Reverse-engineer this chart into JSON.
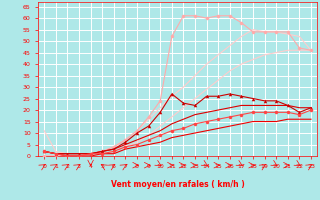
{
  "xlabel": "Vent moyen/en rafales ( km/h )",
  "bg_color": "#aee8e8",
  "grid_color": "#cceeee",
  "text_color": "#ff0000",
  "xlim": [
    -0.5,
    23.5
  ],
  "ylim": [
    0,
    67
  ],
  "yticks": [
    0,
    5,
    10,
    15,
    20,
    25,
    30,
    35,
    40,
    45,
    50,
    55,
    60,
    65
  ],
  "xticks": [
    0,
    1,
    2,
    3,
    4,
    5,
    6,
    7,
    8,
    9,
    10,
    11,
    12,
    13,
    14,
    15,
    16,
    17,
    18,
    19,
    20,
    21,
    22,
    23
  ],
  "line_pink_dot_x": [
    0,
    1,
    2,
    3,
    4,
    5,
    6,
    7,
    8,
    9,
    10,
    11,
    12,
    13,
    14,
    15,
    16,
    17,
    18,
    19,
    20,
    21,
    22,
    23
  ],
  "line_pink_dot_y": [
    0,
    0,
    0,
    0,
    1,
    2,
    4,
    7,
    11,
    17,
    24,
    52,
    61,
    61,
    60,
    61,
    61,
    58,
    54,
    54,
    54,
    54,
    47,
    46
  ],
  "line_pink_dot_color": "#ffaaaa",
  "line_pink_top_x": [
    0,
    1,
    2,
    3,
    4,
    5,
    6,
    7,
    8,
    9,
    10,
    11,
    12,
    13,
    14,
    15,
    16,
    17,
    18,
    19,
    20,
    21,
    22,
    23
  ],
  "line_pink_top_y": [
    11,
    2,
    1,
    1,
    1,
    2,
    4,
    7,
    11,
    16,
    21,
    26,
    30,
    35,
    40,
    44,
    48,
    52,
    55,
    54,
    54,
    53,
    52,
    46
  ],
  "line_pink_top_color": "#ffcccc",
  "line_pink_diag_x": [
    0,
    1,
    2,
    3,
    4,
    5,
    6,
    7,
    8,
    9,
    10,
    11,
    12,
    13,
    14,
    15,
    16,
    17,
    18,
    19,
    20,
    21,
    22,
    23
  ],
  "line_pink_diag_y": [
    0,
    0,
    0,
    0,
    1,
    1,
    2,
    4,
    6,
    9,
    13,
    17,
    21,
    25,
    29,
    33,
    37,
    40,
    42,
    44,
    45,
    46,
    46,
    46
  ],
  "line_pink_diag_color": "#ffcccc",
  "line_red_tri_x": [
    0,
    1,
    2,
    3,
    4,
    5,
    6,
    7,
    8,
    9,
    10,
    11,
    12,
    13,
    14,
    15,
    16,
    17,
    18,
    19,
    20,
    21,
    22,
    23
  ],
  "line_red_tri_y": [
    2,
    1,
    1,
    1,
    1,
    2,
    3,
    6,
    10,
    13,
    19,
    27,
    23,
    22,
    26,
    26,
    27,
    26,
    25,
    24,
    24,
    22,
    19,
    21
  ],
  "line_red_tri_color": "#cc0000",
  "line_red1_x": [
    0,
    1,
    2,
    3,
    4,
    5,
    6,
    7,
    8,
    9,
    10,
    11,
    12,
    13,
    14,
    15,
    16,
    17,
    18,
    19,
    20,
    21,
    22,
    23
  ],
  "line_red1_y": [
    2,
    1,
    1,
    1,
    1,
    2,
    3,
    5,
    7,
    9,
    11,
    14,
    16,
    18,
    19,
    20,
    21,
    22,
    22,
    22,
    22,
    22,
    21,
    21
  ],
  "line_red1_color": "#dd0000",
  "line_red_dot_x": [
    0,
    1,
    2,
    3,
    4,
    5,
    6,
    7,
    8,
    9,
    10,
    11,
    12,
    13,
    14,
    15,
    16,
    17,
    18,
    19,
    20,
    21,
    22,
    23
  ],
  "line_red_dot_y": [
    2,
    1,
    0,
    0,
    1,
    1,
    2,
    4,
    5,
    7,
    9,
    11,
    12,
    14,
    15,
    16,
    17,
    18,
    19,
    19,
    19,
    19,
    18,
    20
  ],
  "line_red_dot_color": "#ff4444",
  "line_red2_x": [
    0,
    1,
    2,
    3,
    4,
    5,
    6,
    7,
    8,
    9,
    10,
    11,
    12,
    13,
    14,
    15,
    16,
    17,
    18,
    19,
    20,
    21,
    22,
    23
  ],
  "line_red2_y": [
    2,
    1,
    0,
    0,
    0,
    1,
    1,
    3,
    4,
    5,
    6,
    8,
    9,
    10,
    11,
    12,
    13,
    14,
    15,
    15,
    15,
    16,
    16,
    16
  ],
  "line_red2_color": "#ee0000",
  "arrow_directions": [
    45,
    45,
    45,
    45,
    270,
    135,
    45,
    45,
    0,
    0,
    315,
    0,
    0,
    0,
    315,
    0,
    0,
    315,
    0,
    45,
    315,
    0,
    315,
    45
  ]
}
